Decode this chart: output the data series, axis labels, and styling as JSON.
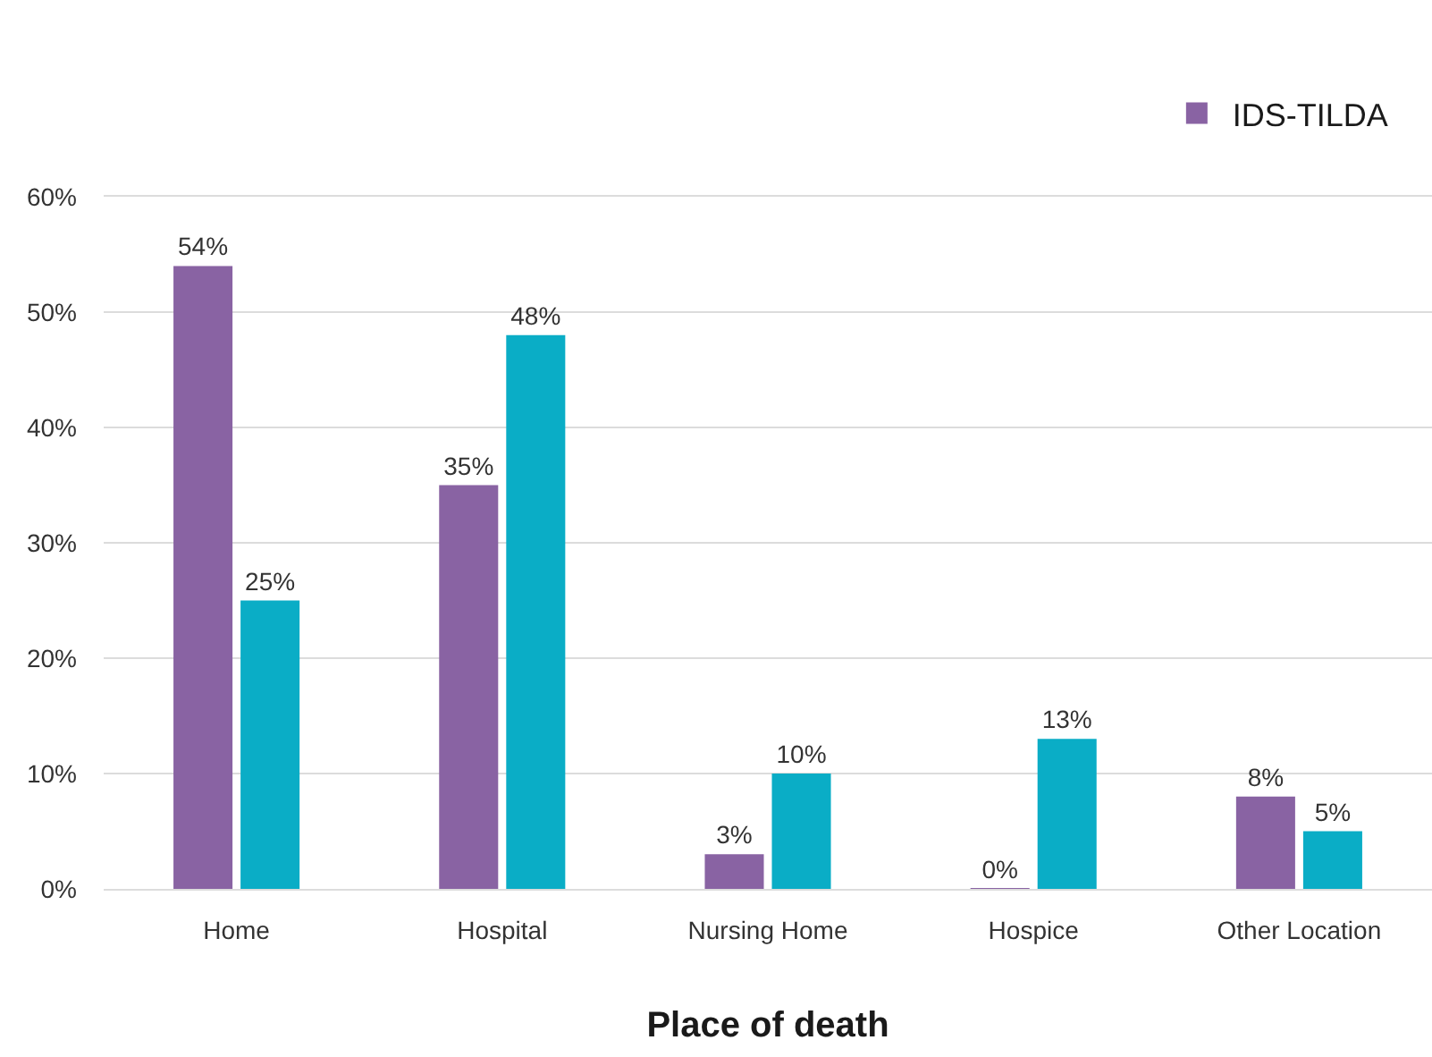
{
  "chart_data": {
    "type": "bar",
    "xlabel": "Place of death",
    "categories": [
      "Home",
      "Hospital",
      "Nursing Home",
      "Hospice",
      "Other Location"
    ],
    "series": [
      {
        "name": "IDS-TILDA",
        "color": "#8963a3",
        "values": [
          54,
          35,
          3,
          0,
          8
        ],
        "value_labels": [
          "54%",
          "35%",
          "3%",
          "0%",
          "8%"
        ]
      },
      {
        "color": "#0aadc6",
        "values": [
          25,
          48,
          10,
          13,
          5
        ],
        "value_labels": [
          "25%",
          "48%",
          "10%",
          "13%",
          "5%"
        ]
      }
    ],
    "ylim": [
      0,
      60
    ],
    "yticks": [
      {
        "value": 0,
        "label": "0%"
      },
      {
        "value": 10,
        "label": "10%"
      },
      {
        "value": 20,
        "label": "20%"
      },
      {
        "value": 30,
        "label": "30%"
      },
      {
        "value": 40,
        "label": "40%"
      },
      {
        "value": 50,
        "label": "50%"
      },
      {
        "value": 60,
        "label": "60%"
      }
    ],
    "grid": "y",
    "legend": "top right"
  }
}
